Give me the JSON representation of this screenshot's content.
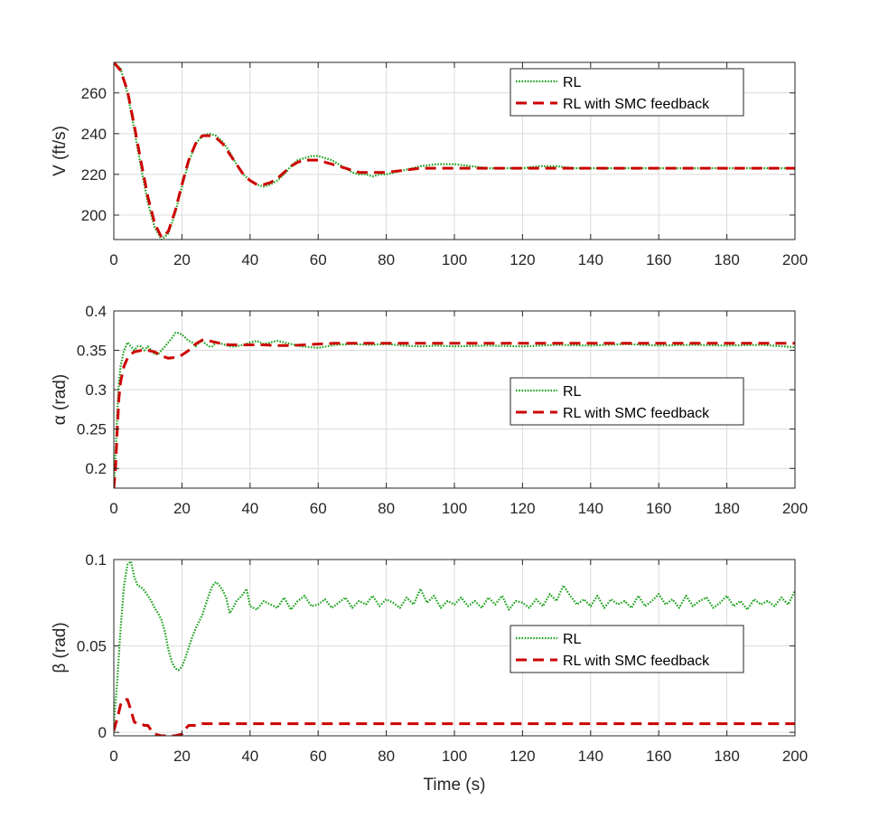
{
  "colors": {
    "rl": "#1ba11b",
    "smc": "#cc0000",
    "axis": "#262626",
    "grid": "#dcdcdc"
  },
  "chart_data": [
    {
      "type": "line",
      "ylabel": "V (ft/s)",
      "xlabel": "",
      "xlim": [
        0,
        200
      ],
      "ylim": [
        188,
        275
      ],
      "xticks": [
        0,
        20,
        40,
        60,
        80,
        100,
        120,
        140,
        160,
        180,
        200
      ],
      "yticks": [
        200,
        220,
        240,
        260
      ],
      "legend": {
        "position": "top-right",
        "entries": [
          "RL",
          "RL with SMC feedback"
        ]
      },
      "series": [
        {
          "name": "RL",
          "style": "dotted",
          "x": [
            0,
            2,
            4,
            6,
            8,
            10,
            12,
            14,
            16,
            18,
            20,
            22,
            24,
            26,
            28,
            30,
            32,
            34,
            36,
            38,
            40,
            42,
            44,
            46,
            48,
            50,
            52,
            54,
            56,
            58,
            60,
            62,
            64,
            66,
            68,
            70,
            72,
            74,
            76,
            78,
            80,
            85,
            90,
            95,
            100,
            105,
            110,
            115,
            120,
            125,
            130,
            135,
            140,
            145,
            150,
            160,
            170,
            180,
            190,
            200
          ],
          "y": [
            275,
            272,
            260,
            242,
            223,
            206,
            194,
            188,
            191,
            201,
            214,
            226,
            235,
            239,
            240,
            239,
            236,
            231,
            225,
            220,
            217,
            215,
            214,
            215,
            217,
            220,
            224,
            227,
            228,
            229,
            229,
            228,
            227,
            225,
            223,
            221,
            220,
            220,
            219,
            220,
            220,
            222,
            224,
            225,
            225,
            224,
            223,
            223,
            223,
            224,
            224,
            223,
            223,
            223,
            223,
            223,
            223,
            223,
            223,
            223
          ]
        },
        {
          "name": "RL with SMC feedback",
          "style": "dashed",
          "x": [
            0,
            2,
            4,
            6,
            8,
            10,
            12,
            14,
            16,
            18,
            20,
            22,
            24,
            26,
            28,
            30,
            32,
            34,
            36,
            38,
            40,
            42,
            44,
            46,
            48,
            50,
            52,
            54,
            56,
            58,
            60,
            62,
            64,
            66,
            68,
            70,
            72,
            74,
            76,
            78,
            80,
            85,
            90,
            95,
            100,
            110,
            120,
            130,
            140,
            160,
            180,
            200
          ],
          "y": [
            275,
            271,
            261,
            244,
            226,
            209,
            196,
            189,
            192,
            202,
            215,
            227,
            235,
            239,
            239,
            238,
            235,
            230,
            225,
            220,
            217,
            215,
            215,
            216,
            218,
            221,
            224,
            226,
            227,
            227,
            227,
            226,
            225,
            224,
            223,
            222,
            221,
            221,
            221,
            221,
            221,
            222,
            223,
            223,
            223,
            223,
            223,
            223,
            223,
            223,
            223,
            223
          ]
        }
      ]
    },
    {
      "type": "line",
      "ylabel": "α (rad)",
      "xlabel": "",
      "xlim": [
        0,
        200
      ],
      "ylim": [
        0.175,
        0.4
      ],
      "xticks": [
        0,
        20,
        40,
        60,
        80,
        100,
        120,
        140,
        160,
        180,
        200
      ],
      "yticks": [
        0.2,
        0.25,
        0.3,
        0.35,
        0.4
      ],
      "legend": {
        "position": "center-right",
        "entries": [
          "RL",
          "RL with SMC feedback"
        ]
      },
      "series": [
        {
          "name": "RL",
          "style": "dotted",
          "x": [
            0,
            0.5,
            1,
            1.5,
            2,
            3,
            4,
            5,
            6,
            7,
            8,
            9,
            10,
            11,
            12,
            13,
            14,
            15,
            16,
            17,
            18,
            19,
            20,
            21,
            22,
            23,
            24,
            25,
            26,
            27,
            28,
            29,
            30,
            32,
            34,
            36,
            38,
            40,
            42,
            44,
            46,
            48,
            50,
            55,
            60,
            65,
            70,
            75,
            80,
            85,
            90,
            95,
            100,
            110,
            120,
            130,
            140,
            150,
            160,
            170,
            180,
            190,
            200
          ],
          "y": [
            0.175,
            0.22,
            0.27,
            0.31,
            0.33,
            0.35,
            0.36,
            0.355,
            0.35,
            0.355,
            0.355,
            0.35,
            0.355,
            0.35,
            0.345,
            0.345,
            0.35,
            0.355,
            0.36,
            0.365,
            0.372,
            0.372,
            0.37,
            0.366,
            0.362,
            0.36,
            0.355,
            0.36,
            0.362,
            0.358,
            0.355,
            0.355,
            0.36,
            0.358,
            0.355,
            0.355,
            0.357,
            0.36,
            0.362,
            0.358,
            0.36,
            0.362,
            0.36,
            0.355,
            0.353,
            0.357,
            0.358,
            0.357,
            0.358,
            0.356,
            0.355,
            0.356,
            0.355,
            0.356,
            0.355,
            0.357,
            0.356,
            0.358,
            0.356,
            0.357,
            0.356,
            0.357,
            0.354
          ]
        },
        {
          "name": "RL with SMC feedback",
          "style": "dashed",
          "x": [
            0,
            0.5,
            1,
            1.5,
            2,
            3,
            4,
            5,
            6,
            8,
            10,
            12,
            14,
            16,
            18,
            20,
            22,
            24,
            26,
            28,
            30,
            32,
            34,
            36,
            40,
            44,
            48,
            52,
            56,
            60,
            65,
            70,
            80,
            90,
            100,
            120,
            140,
            160,
            180,
            200
          ],
          "y": [
            0.175,
            0.2,
            0.25,
            0.29,
            0.31,
            0.33,
            0.34,
            0.345,
            0.348,
            0.35,
            0.35,
            0.348,
            0.343,
            0.34,
            0.341,
            0.344,
            0.35,
            0.358,
            0.363,
            0.362,
            0.36,
            0.358,
            0.357,
            0.357,
            0.357,
            0.357,
            0.356,
            0.356,
            0.357,
            0.358,
            0.359,
            0.359,
            0.359,
            0.359,
            0.359,
            0.359,
            0.359,
            0.359,
            0.359,
            0.359
          ]
        }
      ]
    },
    {
      "type": "line",
      "ylabel": "β (rad)",
      "xlabel": "Time (s)",
      "xlim": [
        0,
        200
      ],
      "ylim": [
        -0.002,
        0.1
      ],
      "xticks": [
        0,
        20,
        40,
        60,
        80,
        100,
        120,
        140,
        160,
        180,
        200
      ],
      "yticks": [
        0,
        0.05,
        0.1
      ],
      "legend": {
        "position": "center-right",
        "entries": [
          "RL",
          "RL with SMC feedback"
        ]
      },
      "series": [
        {
          "name": "RL",
          "style": "dotted",
          "x": [
            0,
            1,
            2,
            3,
            4,
            5,
            6,
            7,
            8,
            9,
            10,
            11,
            12,
            13,
            14,
            15,
            16,
            17,
            18,
            19,
            20,
            21,
            22,
            23,
            24,
            25,
            26,
            27,
            28,
            29,
            30,
            31,
            32,
            33,
            34,
            35,
            36,
            37,
            38,
            39,
            40,
            42,
            44,
            46,
            48,
            50,
            52,
            54,
            56,
            58,
            60,
            62,
            64,
            66,
            68,
            70,
            72,
            74,
            76,
            78,
            80,
            82,
            84,
            86,
            88,
            90,
            92,
            94,
            96,
            98,
            100,
            102,
            104,
            106,
            108,
            110,
            112,
            114,
            116,
            118,
            120,
            122,
            124,
            126,
            128,
            130,
            132,
            134,
            136,
            138,
            140,
            142,
            144,
            146,
            148,
            150,
            152,
            154,
            156,
            158,
            160,
            162,
            164,
            166,
            168,
            170,
            172,
            174,
            176,
            178,
            180,
            182,
            184,
            186,
            188,
            190,
            192,
            194,
            196,
            198,
            200
          ],
          "y": [
            0.005,
            0.03,
            0.06,
            0.085,
            0.097,
            0.099,
            0.09,
            0.085,
            0.084,
            0.082,
            0.079,
            0.076,
            0.072,
            0.069,
            0.065,
            0.058,
            0.048,
            0.041,
            0.037,
            0.036,
            0.038,
            0.043,
            0.049,
            0.055,
            0.06,
            0.064,
            0.068,
            0.074,
            0.08,
            0.085,
            0.087,
            0.085,
            0.082,
            0.078,
            0.069,
            0.072,
            0.076,
            0.078,
            0.08,
            0.083,
            0.073,
            0.071,
            0.076,
            0.074,
            0.072,
            0.078,
            0.071,
            0.076,
            0.079,
            0.073,
            0.074,
            0.077,
            0.072,
            0.075,
            0.078,
            0.072,
            0.076,
            0.074,
            0.079,
            0.073,
            0.077,
            0.075,
            0.072,
            0.078,
            0.074,
            0.083,
            0.075,
            0.079,
            0.072,
            0.076,
            0.074,
            0.078,
            0.073,
            0.076,
            0.072,
            0.078,
            0.074,
            0.079,
            0.071,
            0.076,
            0.075,
            0.072,
            0.077,
            0.073,
            0.08,
            0.076,
            0.085,
            0.079,
            0.074,
            0.077,
            0.073,
            0.079,
            0.072,
            0.077,
            0.074,
            0.076,
            0.072,
            0.079,
            0.073,
            0.076,
            0.08,
            0.074,
            0.077,
            0.072,
            0.079,
            0.073,
            0.076,
            0.078,
            0.072,
            0.075,
            0.079,
            0.073,
            0.076,
            0.071,
            0.077,
            0.074,
            0.076,
            0.073,
            0.078,
            0.074,
            0.082
          ]
        },
        {
          "name": "RL with SMC feedback",
          "style": "dashed",
          "x": [
            0,
            1,
            2,
            3,
            4,
            5,
            6,
            7,
            8,
            9,
            10,
            11,
            12,
            14,
            16,
            18,
            20,
            21,
            22,
            24,
            26,
            28,
            30,
            32,
            34,
            36,
            40,
            50,
            60,
            80,
            100,
            120,
            140,
            160,
            180,
            200
          ],
          "y": [
            0.001,
            0.008,
            0.016,
            0.019,
            0.019,
            0.013,
            0.006,
            0.005,
            0.005,
            0.004,
            0.004,
            0.001,
            -0.001,
            -0.002,
            -0.002,
            -0.002,
            -0.001,
            0.002,
            0.004,
            0.004,
            0.005,
            0.005,
            0.005,
            0.005,
            0.005,
            0.005,
            0.005,
            0.005,
            0.005,
            0.005,
            0.005,
            0.005,
            0.005,
            0.005,
            0.005,
            0.005
          ]
        }
      ]
    }
  ]
}
